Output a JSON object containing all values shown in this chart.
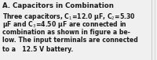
{
  "background_color": "#f0f0f0",
  "text_color": "#1a1a1a",
  "title": "A. Capacitors in Combination",
  "line1": "Three capacitors, C$_1$=12.0 μF, C$_2$=5.30",
  "line2": "μF and C$_3$=4.50 μF are connected in",
  "line3": "combination as shown in figure a be-",
  "line4": "low. The input terminals are connected",
  "line5": "to a   12.5 V battery.",
  "title_fontsize": 6.2,
  "body_fontsize": 5.6,
  "right_border_color": "#aaaaaa",
  "right_border_color2": "#cccccc"
}
